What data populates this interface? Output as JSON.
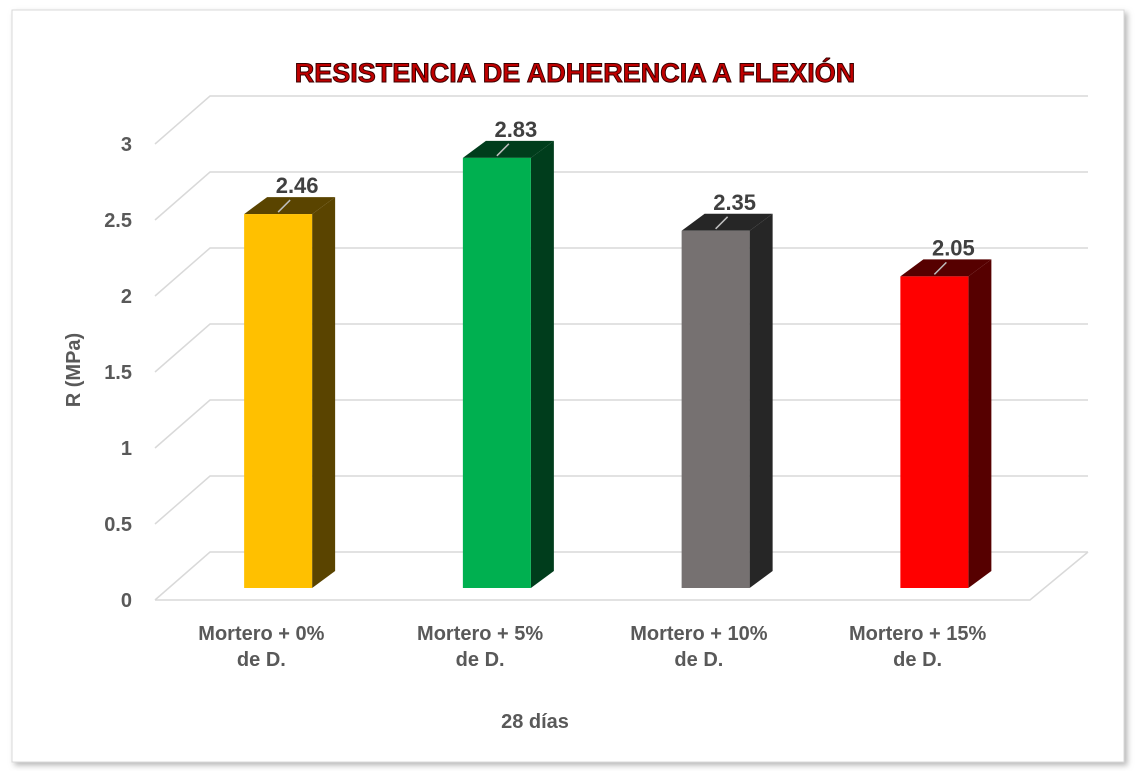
{
  "chart_data": {
    "type": "bar3d",
    "title": "RESISTENCIA DE ADHERENCIA A FLEXIÓN",
    "categories": [
      [
        "Mortero + 0%",
        "de D."
      ],
      [
        "Mortero + 5%",
        "de D."
      ],
      [
        "Mortero + 10%",
        "de D."
      ],
      [
        "Mortero + 15%",
        "de D."
      ]
    ],
    "values": [
      2.46,
      2.83,
      2.35,
      2.05
    ],
    "colors": [
      "#ffc000",
      "#00b050",
      "#767171",
      "#ff0000"
    ],
    "side_colors": [
      "#5a4400",
      "#003d1c",
      "#262626",
      "#560000"
    ],
    "ylabel": "R (MPa)",
    "xlabel": "28 días",
    "ylim": [
      0,
      3
    ],
    "yticks": [
      0,
      0.5,
      1,
      1.5,
      2,
      2.5,
      3
    ],
    "grid": true
  }
}
